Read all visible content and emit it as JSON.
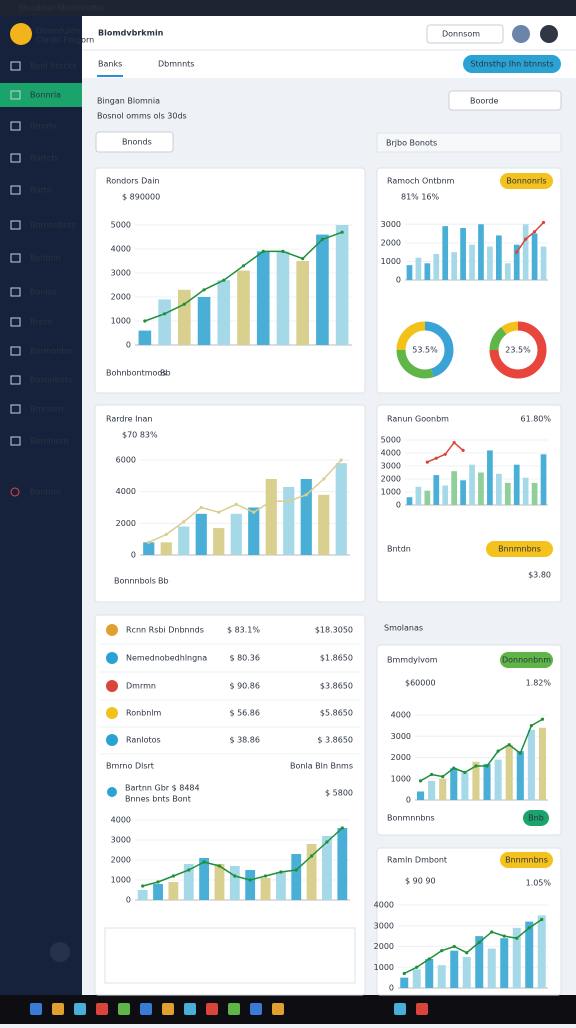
{
  "window_title": "Stcodrtor Morkbrtdtar",
  "sidebar": {
    "user": "Domnfuldn",
    "user_sub": "Conlbl Fmgorn",
    "items": [
      "Bonl Stocks",
      "Bonnria",
      "Brnofo",
      "Bortcts",
      "Bortn",
      "Bnmonbnts",
      "Bohbnn",
      "Bonlos",
      "Brptn",
      "Bormonbn",
      "Bosnnbnts",
      "Bmrsnm",
      "Bemlnom"
    ],
    "active": 1,
    "logout": "Bontom"
  },
  "header": {
    "logo": "Blomdvbrkmin",
    "search": "Donnsom"
  },
  "tabs": {
    "active": "Banks",
    "search": "Dbmnnts",
    "button": "Stdnsthp Ihn btnnsts"
  },
  "page": {
    "title": "Bingan Blomnia",
    "subtitle": "Bosnol omms ols 30ds",
    "search": "Boorde",
    "select": "Bnonds",
    "filter": "Brjbo Bonots",
    "section": "Smolanas"
  },
  "cards": [
    {
      "title": "Rondors Dain",
      "value": "$ 890000",
      "footer": "Bohnbontmoos",
      "footer_tag": "Bb",
      "chart": {
        "ylim": [
          0,
          5000
        ],
        "yticks": [
          0,
          1000,
          2000,
          3000,
          4000,
          5000
        ],
        "bars": [
          600,
          1900,
          2300,
          2000,
          2700,
          3100,
          3900,
          3900,
          3500,
          4600,
          5000
        ],
        "line": [
          1000,
          1300,
          1700,
          2300,
          2700,
          3300,
          3900,
          3900,
          3600,
          4400,
          4700
        ],
        "bar_colors": [
          "#4aafd6",
          "#a6d9e8",
          "#d9cf8f"
        ],
        "line_color": "#1f8f3a"
      }
    },
    {
      "title": "Ramoch Ontbnm",
      "value": "81% 16%",
      "badge": "Bonnonrls",
      "chart": {
        "ylim": [
          0,
          3500
        ],
        "yticks": [
          0,
          1000,
          2000,
          3000
        ],
        "bars": [
          800,
          1200,
          900,
          1400,
          2900,
          1500,
          2800,
          1900,
          3000,
          1800,
          2400,
          900,
          1900,
          3000,
          2500,
          1800
        ],
        "line": [
          null,
          null,
          null,
          null,
          null,
          null,
          null,
          null,
          null,
          null,
          null,
          null,
          1500,
          2200,
          2600,
          3100
        ],
        "bar_colors": [
          "#4aafd6",
          "#a6d9e8"
        ],
        "line_color": "#d9453a"
      },
      "donuts": [
        {
          "center": "53.5%",
          "values": [
            45,
            30,
            25
          ],
          "colors": [
            "#3aa3d6",
            "#5fb548",
            "#f2c21b"
          ]
        },
        {
          "center": "23.5%",
          "values": [
            75,
            15,
            10
          ],
          "colors": [
            "#e8453c",
            "#5fb548",
            "#f2c21b"
          ]
        }
      ]
    },
    {
      "title": "Rardre Inan",
      "value": "$70 83%",
      "chart": {
        "ylim": [
          0,
          6000
        ],
        "yticks": [
          0,
          2000,
          4000,
          6000
        ],
        "bars": [
          800,
          800,
          1800,
          2600,
          1700,
          2600,
          3000,
          4800,
          4300,
          4800,
          3800,
          5800
        ],
        "line": [
          800,
          1300,
          2100,
          3000,
          2700,
          3200,
          2700,
          3400,
          3400,
          3800,
          4800,
          6000
        ],
        "bar_colors": [
          "#4aafd6",
          "#d9cf8f",
          "#a6d9e8"
        ],
        "line_color": "#d9cf8f"
      },
      "footer": "Bonnnbols",
      "footer_tag": "Bb"
    },
    {
      "title": "Ranun Goonbm",
      "value": "61.80%",
      "badge": "Bnnmnbns",
      "sub": "Bntdn",
      "sub_value": "$3.80",
      "chart": {
        "ylim": [
          0,
          5000
        ],
        "yticks": [
          0,
          1000,
          2000,
          3000,
          4000,
          5000
        ],
        "bars": [
          600,
          1400,
          1100,
          2300,
          1500,
          2600,
          1900,
          3100,
          2500,
          4200,
          2400,
          1700,
          3100,
          2100,
          1700,
          3900
        ],
        "line": [
          null,
          null,
          3300,
          3600,
          3900,
          4800,
          4200,
          null,
          null,
          null,
          null,
          null,
          null,
          null,
          null,
          null
        ],
        "bar_colors": [
          "#4aafd6",
          "#a6d9e8",
          "#8fcf9a"
        ],
        "line_color": "#d9453a"
      }
    },
    {
      "rows": [
        {
          "name": "Rcnn Rsbi Dnbnnds",
          "v1": "$ 83.1%",
          "v2": "$18.3050"
        },
        {
          "name": "Nemednobedhlngna",
          "v1": "$ 80.36",
          "v2": "$1.8650"
        },
        {
          "name": "Dmrmn",
          "v1": "$ 90.86",
          "v2": "$3.8650"
        },
        {
          "name": "Ronbnlm",
          "v1": "$ 56.86",
          "v2": "$5.8650"
        },
        {
          "name": "Ranlotos",
          "v1": "$ 38.86",
          "v2": "$ 3.8650"
        }
      ],
      "footer_left": "Bmrno Dlsrt",
      "footer_right": "Bonla Bln Bnms",
      "sub": "Bartnn Gbr $ 8484",
      "sub2": "Bnnes bnts Bont",
      "sub_value": "$ 5800",
      "chart": {
        "ylim": [
          0,
          4000
        ],
        "yticks": [
          0,
          1000,
          2000,
          3000,
          4000
        ],
        "bars": [
          500,
          800,
          900,
          1800,
          2100,
          1800,
          1700,
          1500,
          1100,
          1400,
          2300,
          2800,
          3200,
          3600
        ],
        "line": [
          700,
          900,
          1200,
          1500,
          1900,
          1700,
          1200,
          1000,
          1200,
          1400,
          1500,
          2200,
          2900,
          3600
        ],
        "bar_colors": [
          "#a6d9e8",
          "#4aafd6",
          "#d9cf8f"
        ],
        "line_color": "#1f8f3a"
      }
    },
    {
      "title": "Bmmdylvom",
      "badge": "Donnonbnm",
      "value": "$60000",
      "change": "1.82%",
      "footer": "Bonmnnbns",
      "footer_tag": "Bnb",
      "chart": {
        "ylim": [
          0,
          4000
        ],
        "yticks": [
          0,
          1000,
          2000,
          3000,
          4000
        ],
        "bars": [
          400,
          900,
          1000,
          1500,
          1300,
          1800,
          1700,
          1900,
          2600,
          2300,
          3300,
          3400
        ],
        "line": [
          900,
          1200,
          1100,
          1500,
          1300,
          1600,
          1600,
          2300,
          2600,
          2200,
          3500,
          3800
        ],
        "bar_colors": [
          "#4aafd6",
          "#a6d9e8",
          "#d9cf8f"
        ],
        "line_color": "#1f8f3a"
      }
    },
    {
      "title": "Ramln Dmbont",
      "badge": "Bnnmnbns",
      "value": "$ 90 90",
      "change": "1.05%",
      "chart": {
        "ylim": [
          0,
          4000
        ],
        "yticks": [
          0,
          1000,
          2000,
          3000,
          4000
        ],
        "bars": [
          500,
          900,
          1400,
          1100,
          1800,
          1500,
          2500,
          1900,
          2400,
          2900,
          3200,
          3500
        ],
        "line": [
          700,
          1000,
          1400,
          1800,
          2000,
          1700,
          2200,
          2700,
          2500,
          2400,
          2900,
          3300
        ],
        "bar_colors": [
          "#4aafd6",
          "#a6d9e8"
        ],
        "line_color": "#1f8f3a"
      }
    }
  ]
}
